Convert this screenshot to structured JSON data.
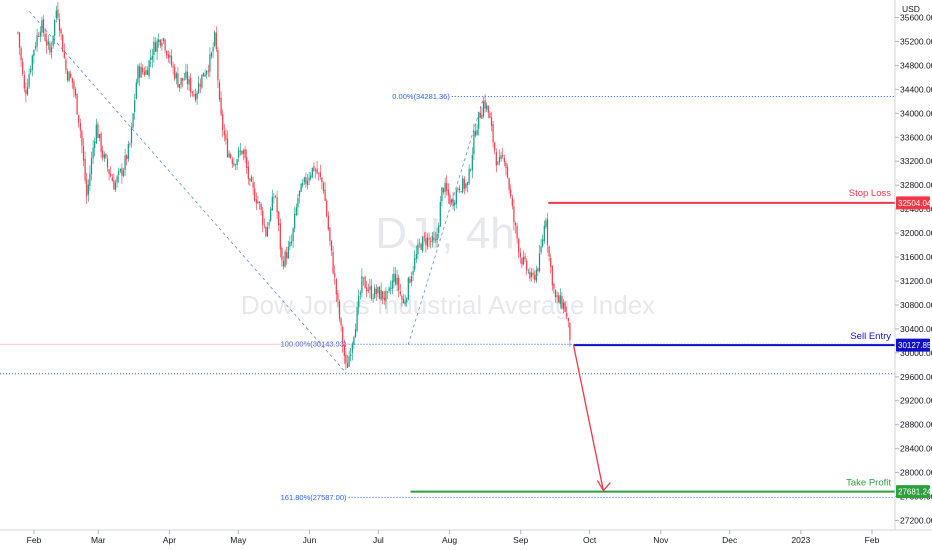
{
  "chart_data": {
    "type": "candlestick",
    "currency": "USD",
    "watermark": {
      "symbol": "DJI, 4h",
      "name": "Dow Jones Industrial Average Index"
    },
    "y_axis": {
      "min": 27000,
      "max": 35600,
      "ticks": [
        27200,
        27600,
        28000,
        28400,
        28800,
        29200,
        29600,
        30000,
        30400,
        30800,
        31200,
        31600,
        32000,
        32400,
        32800,
        33200,
        33600,
        34000,
        34400,
        34800,
        35200,
        35600
      ]
    },
    "x_axis": {
      "range": [
        "2022-01-25",
        "2023-02-14"
      ],
      "ticks": [
        {
          "date": "2022-02-01",
          "label": "Feb"
        },
        {
          "date": "2022-03-01",
          "label": "Mar"
        },
        {
          "date": "2022-04-01",
          "label": "Apr"
        },
        {
          "date": "2022-05-01",
          "label": "May"
        },
        {
          "date": "2022-06-01",
          "label": "Jun"
        },
        {
          "date": "2022-07-01",
          "label": "Jul"
        },
        {
          "date": "2022-08-01",
          "label": "Aug"
        },
        {
          "date": "2022-09-01",
          "label": "Sep"
        },
        {
          "date": "2022-10-01",
          "label": "Oct"
        },
        {
          "date": "2022-11-01",
          "label": "Nov"
        },
        {
          "date": "2022-12-01",
          "label": "Dec"
        },
        {
          "date": "2023-01-01",
          "label": "2023"
        },
        {
          "date": "2023-02-01",
          "label": "Feb"
        }
      ]
    },
    "price_path": [
      [
        "2022-01-25",
        35350
      ],
      [
        "2022-01-28",
        34300
      ],
      [
        "2022-02-01",
        35100
      ],
      [
        "2022-02-04",
        35500
      ],
      [
        "2022-02-08",
        35000
      ],
      [
        "2022-02-11",
        35800
      ],
      [
        "2022-02-15",
        34700
      ],
      [
        "2022-02-18",
        34500
      ],
      [
        "2022-02-21",
        33800
      ],
      [
        "2022-02-24",
        32600
      ],
      [
        "2022-02-28",
        33800
      ],
      [
        "2022-03-03",
        33300
      ],
      [
        "2022-03-08",
        32800
      ],
      [
        "2022-03-12",
        33100
      ],
      [
        "2022-03-15",
        33500
      ],
      [
        "2022-03-18",
        34700
      ],
      [
        "2022-03-22",
        34700
      ],
      [
        "2022-03-25",
        35100
      ],
      [
        "2022-03-29",
        35300
      ],
      [
        "2022-04-01",
        34900
      ],
      [
        "2022-04-05",
        34500
      ],
      [
        "2022-04-08",
        34600
      ],
      [
        "2022-04-12",
        34300
      ],
      [
        "2022-04-15",
        34600
      ],
      [
        "2022-04-19",
        34900
      ],
      [
        "2022-04-21",
        35300
      ],
      [
        "2022-04-23",
        34000
      ],
      [
        "2022-04-26",
        33400
      ],
      [
        "2022-04-29",
        33200
      ],
      [
        "2022-05-03",
        33400
      ],
      [
        "2022-05-06",
        32800
      ],
      [
        "2022-05-10",
        32500
      ],
      [
        "2022-05-13",
        32000
      ],
      [
        "2022-05-17",
        32700
      ],
      [
        "2022-05-20",
        31500
      ],
      [
        "2022-05-24",
        31800
      ],
      [
        "2022-05-27",
        32600
      ],
      [
        "2022-06-01",
        33000
      ],
      [
        "2022-06-03",
        33100
      ],
      [
        "2022-06-07",
        32800
      ],
      [
        "2022-06-10",
        31800
      ],
      [
        "2022-06-14",
        30600
      ],
      [
        "2022-06-17",
        29700
      ],
      [
        "2022-06-21",
        30500
      ],
      [
        "2022-06-24",
        31200
      ],
      [
        "2022-06-28",
        31000
      ],
      [
        "2022-07-01",
        31000
      ],
      [
        "2022-07-05",
        30900
      ],
      [
        "2022-07-08",
        31300
      ],
      [
        "2022-07-12",
        30800
      ],
      [
        "2022-07-15",
        31300
      ],
      [
        "2022-07-19",
        31800
      ],
      [
        "2022-07-22",
        31900
      ],
      [
        "2022-07-26",
        31800
      ],
      [
        "2022-07-29",
        32800
      ],
      [
        "2022-08-02",
        32500
      ],
      [
        "2022-08-05",
        32800
      ],
      [
        "2022-08-09",
        32800
      ],
      [
        "2022-08-12",
        33700
      ],
      [
        "2022-08-16",
        34200
      ],
      [
        "2022-08-18",
        34000
      ],
      [
        "2022-08-22",
        33100
      ],
      [
        "2022-08-25",
        33300
      ],
      [
        "2022-08-29",
        32200
      ],
      [
        "2022-09-01",
        31600
      ],
      [
        "2022-09-06",
        31200
      ],
      [
        "2022-09-09",
        31500
      ],
      [
        "2022-09-12",
        32300
      ],
      [
        "2022-09-13",
        31700
      ],
      [
        "2022-09-16",
        30900
      ],
      [
        "2022-09-20",
        30800
      ],
      [
        "2022-09-23",
        30150
      ]
    ],
    "annotations": {
      "stop_loss": {
        "label": "Stop Loss",
        "value": 32504.04,
        "badge": "32504.04",
        "color": "#f23645"
      },
      "sell_entry": {
        "label": "Sell Entry",
        "value": 30127.85,
        "badge": "30127.85",
        "color": "#1010c8"
      },
      "take_profit": {
        "label": "Take Profit",
        "value": 27681.24,
        "badge": "27681.24",
        "color": "#2e9e3e"
      },
      "fib": [
        {
          "label": "0.00%(34281.36)",
          "value": 34281.36
        },
        {
          "label": "100.00%(30143.93)",
          "value": 30143.93
        },
        {
          "label": "161.80%(27587.00)",
          "value": 27587.0
        }
      ],
      "support_level": 29650,
      "trendline": {
        "from": [
          "2022-01-30",
          35700
        ],
        "to": [
          "2022-06-17",
          29660
        ]
      },
      "swing_low": [
        "2022-06-17",
        29660
      ],
      "swing_low_2": [
        "2022-07-14",
        30140
      ],
      "swing_high": [
        "2022-08-16",
        34281.36
      ],
      "projection_arrow": {
        "from": [
          "2022-09-24",
          30127.85
        ],
        "to": [
          "2022-10-07",
          27700
        ]
      }
    }
  }
}
